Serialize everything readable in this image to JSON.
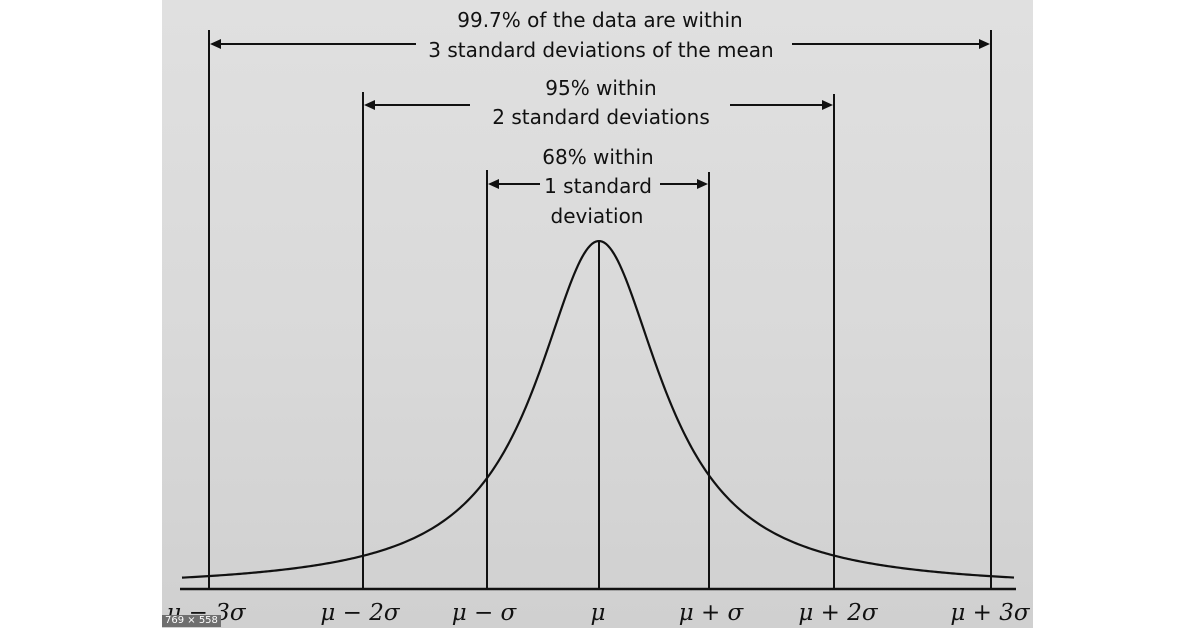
{
  "annotations": {
    "a99_line1": "99.7% of the data are within",
    "a99_line2": "3 standard deviations of the mean",
    "a95_line1": "95% within",
    "a95_line2": "2 standard deviations",
    "a68_line1": "68% within",
    "a68_line2": "1 standard",
    "a68_line3": "deviation"
  },
  "axis_labels": {
    "m3": "μ − 3σ",
    "m2": "μ − 2σ",
    "m1": "μ − σ",
    "mu": "μ",
    "p1": "μ + σ",
    "p2": "μ + 2σ",
    "p3": "μ + 3σ"
  },
  "size_badge": "769 × 558",
  "colors": {
    "panel": "#d9d9d9",
    "ink": "#111111"
  }
}
